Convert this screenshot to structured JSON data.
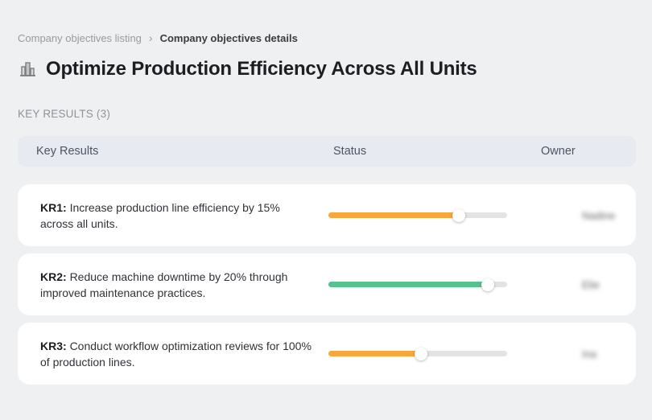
{
  "breadcrumb": {
    "items": [
      {
        "label": "Company objectives listing"
      },
      {
        "label": "Company objectives details"
      }
    ]
  },
  "page": {
    "title": "Optimize Production Efficiency Across All Units",
    "title_icon": "buildings-icon",
    "section_label": "KEY RESULTS (3)"
  },
  "table": {
    "headers": [
      "Key Results",
      "Status",
      "Owner"
    ],
    "rows": [
      {
        "kr_label": "KR1:",
        "kr_text": "Increase production line efficiency by 15% across all units.",
        "progress_percent": 73,
        "progress_color": "#F9A63B",
        "owner_name": "Nadine"
      },
      {
        "kr_label": "KR2:",
        "kr_text": "Reduce machine downtime by 20% through improved maintenance practices.",
        "progress_percent": 89,
        "progress_color": "#56C28D",
        "owner_name": "Elie"
      },
      {
        "kr_label": "KR3:",
        "kr_text": "Conduct workflow optimization reviews for 100% of production lines.",
        "progress_percent": 52,
        "progress_color": "#F9A63B",
        "owner_name": "Ina"
      }
    ]
  },
  "colors": {
    "accent_orange": "#F9A63B",
    "accent_green": "#56C28D",
    "progress_track": "#E3E3E4",
    "header_bg": "#E7EAF1",
    "page_bg": "#EFF0F2",
    "card_bg": "#FFFFFF"
  }
}
